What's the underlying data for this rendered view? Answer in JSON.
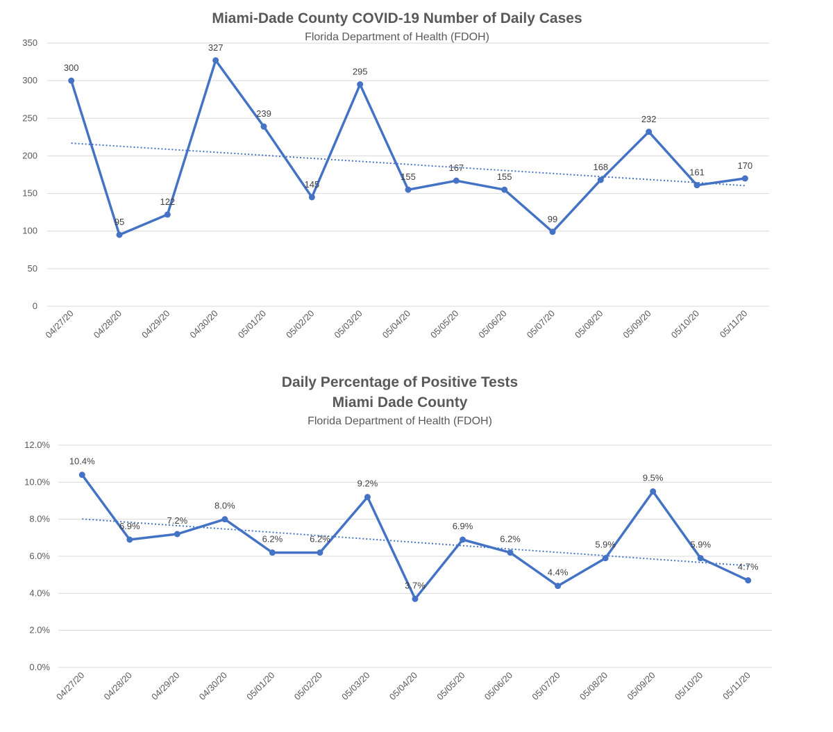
{
  "chart_data": [
    {
      "type": "line",
      "title": "Miami-Dade County COVID-19 Number of Daily Cases",
      "subtitle": "Florida Department of Health (FDOH)",
      "categories": [
        "04/27/20",
        "04/28/20",
        "04/29/20",
        "04/30/20",
        "05/01/20",
        "05/02/20",
        "05/03/20",
        "05/04/20",
        "05/05/20",
        "05/06/20",
        "05/07/20",
        "05/08/20",
        "05/09/20",
        "05/10/20",
        "05/11/20"
      ],
      "series": [
        {
          "values": [
            300,
            95,
            122,
            327,
            239,
            145,
            295,
            155,
            167,
            155,
            99,
            168,
            232,
            161,
            170
          ]
        }
      ],
      "data_labels": [
        "300",
        "95",
        "122",
        "327",
        "239",
        "145",
        "295",
        "155",
        "167",
        "155",
        "99",
        "168",
        "232",
        "161",
        "170"
      ],
      "trendline": "linear",
      "ylim": [
        0,
        350
      ],
      "yticks": [
        0,
        50,
        100,
        150,
        200,
        250,
        300,
        350
      ],
      "ytick_labels": [
        "0",
        "50",
        "100",
        "150",
        "200",
        "250",
        "300",
        "350"
      ],
      "grid": true,
      "color": "#4472c4"
    },
    {
      "type": "line",
      "title": "Daily Percentage of Positive Tests",
      "title_line2": "Miami Dade County",
      "subtitle": "Florida Department of Health (FDOH)",
      "categories": [
        "04/27/20",
        "04/28/20",
        "04/29/20",
        "04/30/20",
        "05/01/20",
        "05/02/20",
        "05/03/20",
        "05/04/20",
        "05/05/20",
        "05/06/20",
        "05/07/20",
        "05/08/20",
        "05/09/20",
        "05/10/20",
        "05/11/20"
      ],
      "series": [
        {
          "values": [
            10.4,
            6.9,
            7.2,
            8.0,
            6.2,
            6.2,
            9.2,
            3.7,
            6.9,
            6.2,
            4.4,
            5.9,
            9.5,
            5.9,
            4.7
          ]
        }
      ],
      "data_labels": [
        "10.4%",
        "6.9%",
        "7.2%",
        "8.0%",
        "6.2%",
        "6.2%",
        "9.2%",
        "3.7%",
        "6.9%",
        "6.2%",
        "4.4%",
        "5.9%",
        "9.5%",
        "5.9%",
        "4.7%"
      ],
      "trendline": "linear",
      "ylim": [
        0,
        12
      ],
      "yticks": [
        0,
        2,
        4,
        6,
        8,
        10,
        12
      ],
      "ytick_labels": [
        "0.0%",
        "2.0%",
        "4.0%",
        "6.0%",
        "8.0%",
        "10.0%",
        "12.0%"
      ],
      "grid": true,
      "color": "#4472c4"
    }
  ]
}
